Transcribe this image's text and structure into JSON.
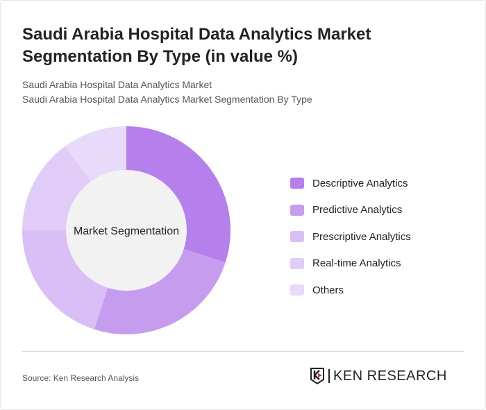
{
  "title": "Saudi Arabia Hospital Data Analytics Market Segmentation By Type (in value %)",
  "subtitle1": "Saudi Arabia Hospital Data Analytics Market",
  "subtitle2": "Saudi Arabia Hospital Data Analytics Market Segmentation By Type",
  "source": "Source: Ken Research Analysis",
  "logo_text": "KEN RESEARCH",
  "chart_data": {
    "type": "pie",
    "donut": true,
    "center_label": "Market Segmentation",
    "legend_position": "right",
    "categories": [
      "Descriptive Analytics",
      "Predictive Analytics",
      "Prescriptive Analytics",
      "Real-time Analytics",
      "Others"
    ],
    "values": [
      30,
      25,
      20,
      15,
      10
    ],
    "colors": [
      "#B57FEC",
      "#C69DEE",
      "#D9BFF5",
      "#E0CCF7",
      "#E8DAF9"
    ]
  }
}
